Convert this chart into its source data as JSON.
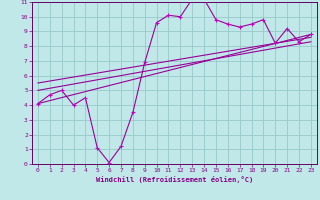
{
  "xlabel": "Windchill (Refroidissement éolien,°C)",
  "bg_color": "#c0e8e8",
  "grid_color": "#98c8c8",
  "line_color": "#990099",
  "marker_color": "#cc00cc",
  "text_color": "#880088",
  "spine_color": "#660066",
  "xlim": [
    -0.5,
    23.5
  ],
  "ylim": [
    0,
    11
  ],
  "xticks": [
    0,
    1,
    2,
    3,
    4,
    5,
    6,
    7,
    8,
    9,
    10,
    11,
    12,
    13,
    14,
    15,
    16,
    17,
    18,
    19,
    20,
    21,
    22,
    23
  ],
  "yticks": [
    0,
    1,
    2,
    3,
    4,
    5,
    6,
    7,
    8,
    9,
    10,
    11
  ],
  "zigzag_x": [
    0,
    1,
    2,
    3,
    4,
    5,
    6,
    7,
    8,
    9,
    10,
    11,
    12,
    13,
    14,
    15,
    16,
    17,
    18,
    19,
    20,
    21,
    22,
    23
  ],
  "zigzag_y": [
    4.1,
    4.7,
    5.0,
    4.0,
    4.5,
    1.1,
    0.1,
    1.2,
    3.5,
    6.9,
    9.6,
    10.1,
    10.0,
    11.2,
    11.2,
    9.8,
    9.5,
    9.3,
    9.5,
    9.8,
    8.2,
    9.2,
    8.3,
    8.8
  ],
  "line1_x": [
    0,
    23
  ],
  "line1_y": [
    4.1,
    8.8
  ],
  "line2_x": [
    0,
    23
  ],
  "line2_y": [
    5.0,
    8.3
  ],
  "line3_x": [
    0,
    23
  ],
  "line3_y": [
    5.5,
    8.6
  ]
}
